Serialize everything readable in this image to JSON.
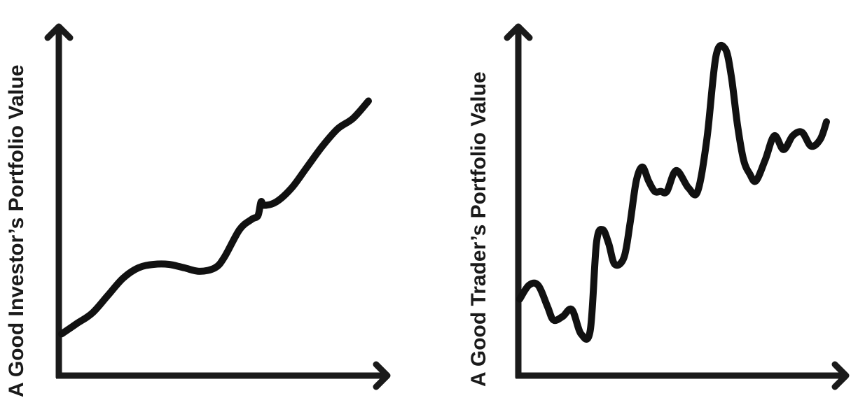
{
  "chart_data": [
    {
      "type": "line",
      "title": "",
      "xlabel": "",
      "ylabel": "A Good Investor’s Portfolio Value",
      "grid": false,
      "xlim": [
        0,
        10
      ],
      "ylim": [
        0,
        10
      ],
      "series": [
        {
          "x": [
            0,
            0.5,
            1,
            1.5,
            2,
            2.5,
            3,
            3.5,
            4,
            4.5,
            5,
            5.3,
            5.8,
            6.2,
            6.4,
            6.5,
            6.6,
            7,
            7.5,
            8,
            8.5,
            9,
            9.5,
            10
          ],
          "y": [
            1.2,
            1.5,
            1.8,
            2.3,
            2.8,
            3.1,
            3.2,
            3.2,
            3.1,
            3.0,
            3.1,
            3.4,
            4.2,
            4.5,
            4.6,
            5.0,
            4.9,
            5.0,
            5.4,
            6.0,
            6.6,
            7.1,
            7.4,
            7.9
          ],
          "color": "#111111"
        }
      ]
    },
    {
      "type": "line",
      "title": "",
      "xlabel": "",
      "ylabel": "A Good Trader’s Portfolio Value",
      "grid": false,
      "xlim": [
        0,
        10
      ],
      "ylim": [
        0,
        10
      ],
      "series": [
        {
          "x": [
            0,
            0.3,
            0.6,
            0.9,
            1.1,
            1.4,
            1.7,
            2.0,
            2.3,
            2.5,
            2.7,
            2.9,
            3.1,
            3.4,
            3.6,
            3.8,
            4.0,
            4.2,
            4.4,
            4.6,
            4.8,
            5.1,
            5.5,
            5.8,
            6.1,
            6.4,
            6.7,
            6.9,
            7.1,
            7.3,
            7.5,
            7.7,
            8.0,
            8.3,
            8.6,
            8.9,
            9.2,
            9.5,
            9.8,
            10
          ],
          "y": [
            2.2,
            2.6,
            2.6,
            2.0,
            1.6,
            1.7,
            1.9,
            1.2,
            1.3,
            3.8,
            4.2,
            3.8,
            3.2,
            3.4,
            4.4,
            5.6,
            6.0,
            5.6,
            5.3,
            5.3,
            5.3,
            5.9,
            5.4,
            5.3,
            6.8,
            9.2,
            9.4,
            8.6,
            7.2,
            6.2,
            5.8,
            5.6,
            6.2,
            6.9,
            6.5,
            6.9,
            7.0,
            6.6,
            6.8,
            7.3
          ],
          "color": "#111111"
        }
      ]
    }
  ]
}
